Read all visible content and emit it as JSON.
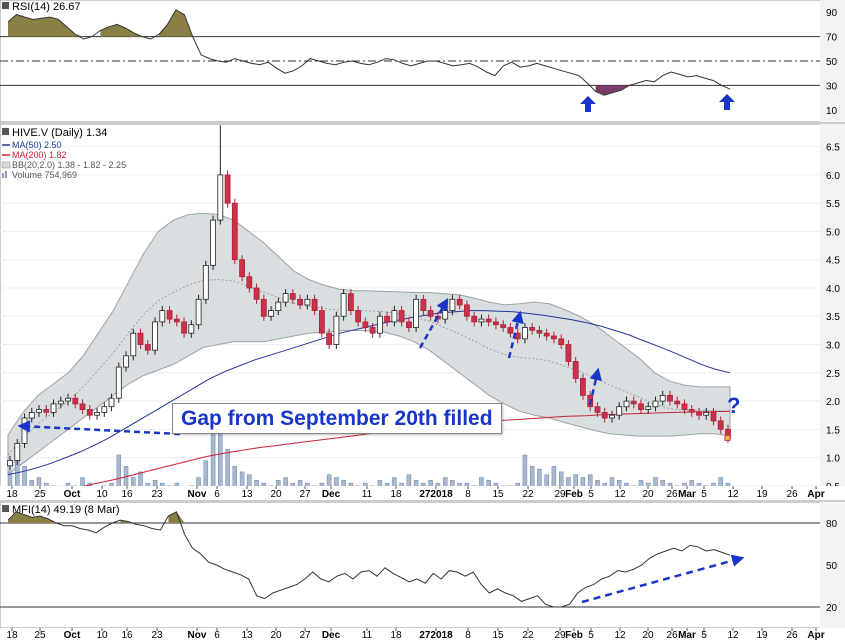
{
  "chart_data": [
    {
      "type": "line",
      "panel": "RSI",
      "label": "RSI(14) 26.67",
      "yticks": [
        10,
        30,
        50,
        70,
        90
      ],
      "reference_lines": [
        30,
        50,
        70
      ],
      "ylim": [
        0,
        100
      ],
      "x_days": [
        0,
        2,
        4,
        6,
        8,
        10,
        12,
        14,
        16,
        18,
        20,
        22,
        24,
        26,
        28,
        30,
        32,
        34,
        36,
        38,
        40,
        42,
        44,
        46,
        48,
        50,
        52,
        54,
        56,
        58,
        60,
        62,
        64,
        66,
        68,
        70,
        72,
        74,
        76,
        78,
        80,
        82,
        84,
        86,
        88,
        90,
        92,
        94,
        96,
        98,
        100,
        102,
        104,
        106,
        108,
        110,
        112,
        114,
        116,
        118,
        120,
        122,
        124,
        126,
        128,
        130,
        132,
        134,
        136,
        138,
        140,
        142,
        144,
        146,
        148,
        150,
        152,
        154,
        156,
        158,
        160,
        162,
        164,
        166,
        168,
        170,
        172
      ],
      "values": [
        82,
        88,
        86,
        84,
        85,
        86,
        84,
        78,
        72,
        68,
        70,
        75,
        78,
        80,
        77,
        73,
        70,
        68,
        72,
        80,
        92,
        88,
        70,
        55,
        52,
        50,
        49,
        52,
        50,
        48,
        47,
        49,
        44,
        40,
        42,
        46,
        52,
        50,
        48,
        47,
        49,
        50,
        48,
        47,
        49,
        52,
        51,
        48,
        46,
        48,
        50,
        50,
        48,
        46,
        47,
        48,
        45,
        41,
        38,
        46,
        49,
        45,
        46,
        48,
        46,
        44,
        42,
        40,
        38,
        32,
        25,
        22,
        24,
        26,
        30,
        32,
        34,
        33,
        38,
        41,
        39,
        37,
        38,
        36,
        34,
        30,
        27
      ]
    },
    {
      "type": "candlestick",
      "panel": "price",
      "title": "HIVE.V (Daily) 1.34",
      "legend": [
        {
          "name": "MA(50) 2.50",
          "color": "#22379b"
        },
        {
          "name": "MA(200) 1.82",
          "color": "#cc2233"
        },
        {
          "name": "BB(20,2.0) 1.38 - 1.82 - 2.25",
          "color": "#888888"
        },
        {
          "name": "Volume 754,969",
          "color": "#8aa0c0"
        }
      ],
      "yticks": [
        0.5,
        1.0,
        1.5,
        2.0,
        2.5,
        3.0,
        3.5,
        4.0,
        4.5,
        5.0,
        5.5,
        6.0,
        6.5
      ],
      "ylim": [
        0.25,
        6.9
      ],
      "x_tick_labels": [
        "18",
        "25",
        "Oct",
        "10",
        "16",
        "23",
        "Nov",
        "6",
        "13",
        "20",
        "27",
        "Dec",
        "11",
        "18",
        "272018",
        "8",
        "15",
        "22",
        "29",
        "Feb",
        "5",
        "12",
        "20",
        "26",
        "Mar",
        "5",
        "12",
        "19",
        "26",
        "Apr"
      ],
      "close": [
        0.95,
        1.25,
        1.7,
        1.8,
        1.85,
        1.8,
        1.95,
        2.0,
        2.05,
        1.95,
        1.85,
        1.75,
        1.8,
        1.9,
        2.05,
        2.6,
        2.8,
        3.2,
        3.0,
        2.9,
        3.4,
        3.6,
        3.45,
        3.4,
        3.2,
        3.35,
        3.8,
        4.4,
        5.2,
        6.0,
        5.5,
        4.5,
        4.2,
        4.0,
        3.8,
        3.5,
        3.6,
        3.75,
        3.9,
        3.8,
        3.7,
        3.8,
        3.6,
        3.2,
        3.0,
        3.5,
        3.9,
        3.6,
        3.4,
        3.3,
        3.2,
        3.5,
        3.4,
        3.6,
        3.4,
        3.3,
        3.8,
        3.6,
        3.5,
        3.45,
        3.6,
        3.8,
        3.7,
        3.5,
        3.4,
        3.45,
        3.4,
        3.35,
        3.3,
        3.2,
        3.1,
        3.3,
        3.25,
        3.2,
        3.15,
        3.1,
        3.0,
        2.7,
        2.4,
        2.1,
        1.9,
        1.8,
        1.7,
        1.75,
        1.9,
        2.0,
        1.95,
        1.85,
        1.9,
        2.0,
        2.1,
        2.0,
        1.95,
        1.85,
        1.8,
        1.75,
        1.8,
        1.65,
        1.5,
        1.34
      ],
      "ma50": [
        0.7,
        0.75,
        0.82,
        0.9,
        1.0,
        1.1,
        1.22,
        1.35,
        1.5,
        1.65,
        1.8,
        1.95,
        2.1,
        2.25,
        2.4,
        2.52,
        2.62,
        2.72,
        2.8,
        2.88,
        2.96,
        3.04,
        3.12,
        3.2,
        3.26,
        3.32,
        3.38,
        3.43,
        3.48,
        3.52,
        3.56,
        3.58,
        3.6,
        3.6,
        3.59,
        3.58,
        3.55,
        3.52,
        3.48,
        3.44,
        3.39,
        3.33,
        3.25,
        3.17,
        3.07,
        2.97,
        2.87,
        2.76,
        2.65,
        2.56,
        2.5
      ],
      "ma200": [
        0.3,
        0.33,
        0.37,
        0.42,
        0.48,
        0.55,
        0.62,
        0.7,
        0.78,
        0.86,
        0.94,
        1.02,
        1.08,
        1.13,
        1.18,
        1.22,
        1.26,
        1.3,
        1.34,
        1.38,
        1.42,
        1.46,
        1.5,
        1.53,
        1.56,
        1.59,
        1.62,
        1.65,
        1.67,
        1.69,
        1.71,
        1.73,
        1.74,
        1.76,
        1.77,
        1.78,
        1.79,
        1.8,
        1.81,
        1.81,
        1.82
      ],
      "bb_upper": [
        1.4,
        1.8,
        2.1,
        2.3,
        2.5,
        2.8,
        3.2,
        3.6,
        4.1,
        4.6,
        5.0,
        5.2,
        5.3,
        5.32,
        5.3,
        5.2,
        5.0,
        4.8,
        4.55,
        4.3,
        4.15,
        4.05,
        3.98,
        3.95,
        3.95,
        3.94,
        3.93,
        3.92,
        3.92,
        3.9,
        3.88,
        3.82,
        3.75,
        3.7,
        3.72,
        3.75,
        3.72,
        3.62,
        3.5,
        3.35,
        3.15,
        2.95,
        2.75,
        2.5,
        2.35,
        2.28,
        2.25,
        2.25,
        2.25
      ],
      "bb_lower": [
        0.7,
        0.9,
        1.1,
        1.3,
        1.5,
        1.7,
        1.9,
        2.1,
        2.3,
        2.45,
        2.55,
        2.65,
        2.8,
        2.95,
        3.0,
        3.05,
        3.05,
        3.05,
        3.1,
        3.15,
        3.2,
        3.22,
        3.24,
        3.25,
        3.24,
        3.22,
        3.15,
        3.05,
        2.9,
        2.7,
        2.5,
        2.3,
        2.1,
        1.95,
        1.82,
        1.75,
        1.7,
        1.62,
        1.55,
        1.48,
        1.42,
        1.4,
        1.38,
        1.38,
        1.38,
        1.4,
        1.42,
        1.42,
        1.38
      ],
      "volume_scale_max": 1.6,
      "volume": [
        0.5,
        0.7,
        0.6,
        0.35,
        0.4,
        0.3,
        0.25,
        0.2,
        0.3,
        0.25,
        0.4,
        0.3,
        0.2,
        0.25,
        0.3,
        0.8,
        0.6,
        0.4,
        0.5,
        0.3,
        0.35,
        0.3,
        0.25,
        0.3,
        0.2,
        0.25,
        0.4,
        0.7,
        1.2,
        1.5,
        0.9,
        0.6,
        0.5,
        0.45,
        0.35,
        0.3,
        0.25,
        0.35,
        0.4,
        0.3,
        0.35,
        0.3,
        0.25,
        0.3,
        0.45,
        0.4,
        0.35,
        0.3,
        0.25,
        0.3,
        0.25,
        0.35,
        0.3,
        0.4,
        0.3,
        0.45,
        0.35,
        0.3,
        0.35,
        0.3,
        0.4,
        0.35,
        0.3,
        0.3,
        0.25,
        0.4,
        0.35,
        0.3,
        0.25,
        0.25,
        0.3,
        0.8,
        0.6,
        0.55,
        0.45,
        0.6,
        0.5,
        0.4,
        0.45,
        0.4,
        0.45,
        0.35,
        0.3,
        0.4,
        0.35,
        0.3,
        0.25,
        0.35,
        0.3,
        0.4,
        0.35,
        0.3,
        0.25,
        0.3,
        0.35,
        0.3,
        0.25,
        0.3,
        0.4,
        0.3
      ]
    },
    {
      "type": "line",
      "panel": "MFI",
      "label": "MFI(14) 49.19 (8 Mar)",
      "yticks": [
        20,
        50,
        80
      ],
      "reference_lines": [
        20,
        80
      ],
      "ylim": [
        5,
        95
      ],
      "x_tick_labels": [
        "18",
        "25",
        "Oct",
        "10",
        "16",
        "23",
        "Nov",
        "6",
        "13",
        "20",
        "27",
        "Dec",
        "11",
        "18",
        "272018",
        "8",
        "15",
        "22",
        "29",
        "Feb",
        "5",
        "12",
        "20",
        "26",
        "Mar",
        "5",
        "12",
        "19",
        "26",
        "Apr"
      ],
      "values": [
        82,
        88,
        86,
        84,
        85,
        83,
        80,
        78,
        78,
        76,
        75,
        73,
        77,
        80,
        82,
        81,
        79,
        78,
        76,
        75,
        85,
        88,
        72,
        62,
        58,
        52,
        50,
        47,
        45,
        43,
        40,
        28,
        26,
        30,
        32,
        34,
        36,
        40,
        45,
        40,
        38,
        42,
        44,
        40,
        45,
        46,
        42,
        48,
        44,
        41,
        38,
        40,
        37,
        44,
        40,
        46,
        45,
        42,
        45,
        36,
        30,
        33,
        30,
        28,
        24,
        26,
        28,
        22,
        20,
        20,
        22,
        30,
        34,
        36,
        40,
        42,
        46,
        45,
        47,
        50,
        55,
        58,
        60,
        62,
        60,
        64,
        63,
        60,
        61,
        59,
        57
      ]
    }
  ],
  "annotations": {
    "gap_text": "Gap from September 20th filled",
    "question_mark": "?",
    "arrow_color": "#1a36c8"
  }
}
